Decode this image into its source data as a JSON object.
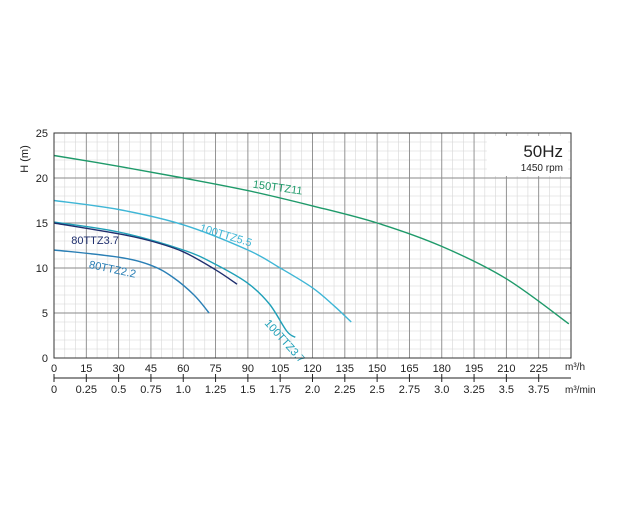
{
  "chart_data": {
    "type": "line",
    "title": "50Hz",
    "subtitle": "1450 rpm",
    "ylabel": "H (m)",
    "xlabel": "m³/h",
    "xlabel_secondary": "m³/min",
    "xlim": [
      0,
      240
    ],
    "ylim": [
      0,
      25
    ],
    "x_ticks": [
      0,
      15,
      30,
      45,
      60,
      75,
      90,
      105,
      120,
      135,
      150,
      165,
      180,
      195,
      210,
      225
    ],
    "y_ticks": [
      0,
      5,
      10,
      15,
      20,
      25
    ],
    "x_secondary_ticks": [
      "0",
      "0.25",
      "0.5",
      "0.75",
      "1.0",
      "1.25",
      "1.5",
      "1.75",
      "2.0",
      "2.25",
      "2.5",
      "2.75",
      "3.0",
      "3.25",
      "3.5",
      "3.75"
    ],
    "grid": true,
    "series": [
      {
        "name": "150TTZ11",
        "color": "#1f9a6a",
        "points": [
          [
            0,
            22.5
          ],
          [
            30,
            21.3
          ],
          [
            60,
            20.0
          ],
          [
            90,
            18.6
          ],
          [
            120,
            16.9
          ],
          [
            150,
            15.0
          ],
          [
            180,
            12.4
          ],
          [
            210,
            8.8
          ],
          [
            239,
            3.8
          ]
        ]
      },
      {
        "name": "100TTZ5.5",
        "color": "#3fb6d6",
        "points": [
          [
            0,
            17.5
          ],
          [
            30,
            16.5
          ],
          [
            60,
            14.8
          ],
          [
            90,
            12.0
          ],
          [
            105,
            10.0
          ],
          [
            120,
            7.8
          ],
          [
            130,
            5.8
          ],
          [
            138,
            4.0
          ]
        ]
      },
      {
        "name": "100TTZ3.7",
        "color": "#1fa0b8",
        "points": [
          [
            0,
            15.1
          ],
          [
            30,
            14.0
          ],
          [
            60,
            12.0
          ],
          [
            75,
            10.4
          ],
          [
            90,
            8.3
          ],
          [
            100,
            6.0
          ],
          [
            108,
            3.0
          ],
          [
            112,
            2.3
          ]
        ]
      },
      {
        "name": "80TTZ3.7",
        "color": "#1f2f6e",
        "points": [
          [
            0,
            15.0
          ],
          [
            30,
            13.8
          ],
          [
            45,
            13.0
          ],
          [
            60,
            11.8
          ],
          [
            75,
            9.8
          ],
          [
            85,
            8.2
          ]
        ]
      },
      {
        "name": "80TTZ2.2",
        "color": "#2a7fb5",
        "points": [
          [
            0,
            12.0
          ],
          [
            30,
            11.2
          ],
          [
            45,
            10.3
          ],
          [
            55,
            9.0
          ],
          [
            65,
            7.0
          ],
          [
            72,
            5.0
          ]
        ]
      }
    ]
  }
}
